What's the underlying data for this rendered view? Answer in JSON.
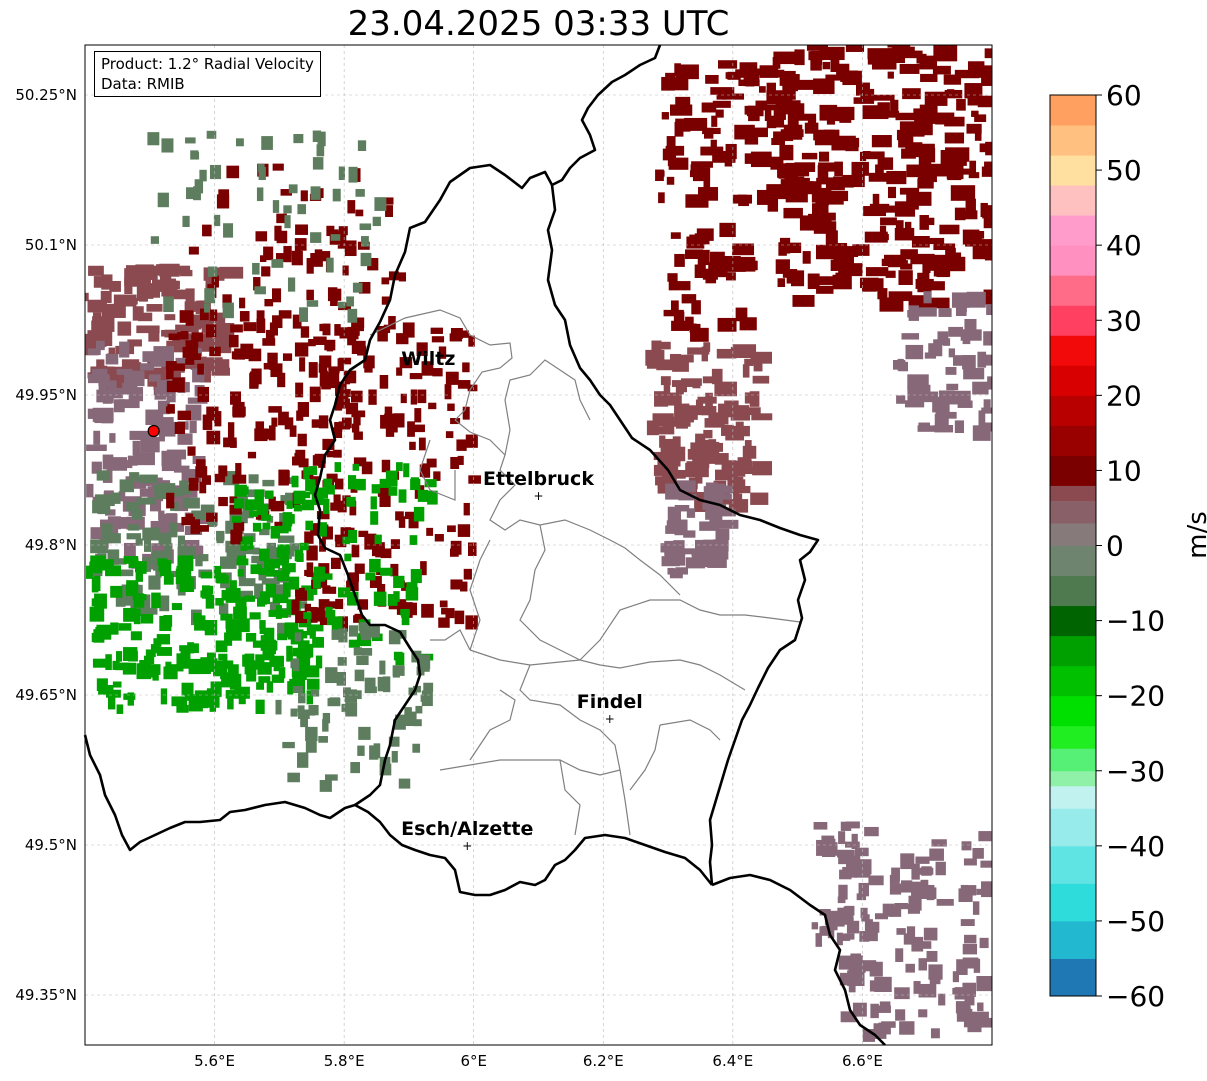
{
  "title": "23.04.2025 03:33 UTC",
  "info": {
    "product": "Product: 1.2° Radial Velocity",
    "data": "Data: RMIB"
  },
  "axes": {
    "lon_range": [
      5.4,
      6.8
    ],
    "lat_range": [
      49.3,
      50.3
    ],
    "x_ticks": [
      {
        "value": 5.6,
        "label": "5.6°E"
      },
      {
        "value": 5.8,
        "label": "5.8°E"
      },
      {
        "value": 6.0,
        "label": "6°E"
      },
      {
        "value": 6.2,
        "label": "6.2°E"
      },
      {
        "value": 6.4,
        "label": "6.4°E"
      },
      {
        "value": 6.6,
        "label": "6.6°E"
      }
    ],
    "y_ticks": [
      {
        "value": 50.25,
        "label": "50.25°N"
      },
      {
        "value": 50.1,
        "label": "50.1°N"
      },
      {
        "value": 49.95,
        "label": "49.95°N"
      },
      {
        "value": 49.8,
        "label": "49.8°N"
      },
      {
        "value": 49.65,
        "label": "49.65°N"
      },
      {
        "value": 49.5,
        "label": "49.5°N"
      },
      {
        "value": 49.35,
        "label": "49.35°N"
      }
    ]
  },
  "places": [
    {
      "name": "Wiltz",
      "lon": 5.93,
      "lat": 49.97,
      "marker": false
    },
    {
      "name": "Ettelbruck",
      "lon": 6.1,
      "lat": 49.85,
      "marker": true
    },
    {
      "name": "Findel",
      "lon": 6.21,
      "lat": 49.627,
      "marker": true
    },
    {
      "name": "Esch/Alzette",
      "lon": 5.99,
      "lat": 49.5,
      "marker": true
    }
  ],
  "radar_site": {
    "lon": 5.506,
    "lat": 49.914,
    "color": "#ff0000"
  },
  "colorbar": {
    "label": "m/s",
    "vmin": -60,
    "vmax": 60,
    "ticks": [
      60,
      50,
      40,
      30,
      20,
      10,
      0,
      -10,
      -20,
      -30,
      -40,
      -50,
      -60
    ],
    "tick_labels": [
      "60",
      "50",
      "40",
      "30",
      "20",
      "10",
      "0",
      "−10",
      "−20",
      "−30",
      "−40",
      "−50",
      "−60"
    ],
    "stops": [
      {
        "from": -60,
        "to": -55,
        "color": "#1f77b4"
      },
      {
        "from": -55,
        "to": -50,
        "color": "#22b8d0"
      },
      {
        "from": -50,
        "to": -45,
        "color": "#2edcdc"
      },
      {
        "from": -45,
        "to": -40,
        "color": "#5fe3e3"
      },
      {
        "from": -40,
        "to": -35,
        "color": "#97ebeb"
      },
      {
        "from": -35,
        "to": -32,
        "color": "#c2f2f0"
      },
      {
        "from": -32,
        "to": -30,
        "color": "#8ff0a8"
      },
      {
        "from": -30,
        "to": -27,
        "color": "#55f075"
      },
      {
        "from": -27,
        "to": -24,
        "color": "#20ee20"
      },
      {
        "from": -24,
        "to": -20,
        "color": "#00e000"
      },
      {
        "from": -20,
        "to": -16,
        "color": "#00c000"
      },
      {
        "from": -16,
        "to": -12,
        "color": "#00a000"
      },
      {
        "from": -12,
        "to": -8,
        "color": "#006400"
      },
      {
        "from": -8,
        "to": -4,
        "color": "#4f7a4f"
      },
      {
        "from": -4,
        "to": 0,
        "color": "#6e846e"
      },
      {
        "from": 0,
        "to": 3,
        "color": "#877a7a"
      },
      {
        "from": 3,
        "to": 6,
        "color": "#8a6068"
      },
      {
        "from": 6,
        "to": 8,
        "color": "#8a4a50"
      },
      {
        "from": 8,
        "to": 12,
        "color": "#7a0000"
      },
      {
        "from": 12,
        "to": 16,
        "color": "#990000"
      },
      {
        "from": 16,
        "to": 20,
        "color": "#b80000"
      },
      {
        "from": 20,
        "to": 24,
        "color": "#d80000"
      },
      {
        "from": 24,
        "to": 28,
        "color": "#f20a0a"
      },
      {
        "from": 28,
        "to": 32,
        "color": "#ff4060"
      },
      {
        "from": 32,
        "to": 36,
        "color": "#ff6c88"
      },
      {
        "from": 36,
        "to": 40,
        "color": "#ff90c0"
      },
      {
        "from": 40,
        "to": 44,
        "color": "#ff9ccc"
      },
      {
        "from": 44,
        "to": 48,
        "color": "#ffc0c0"
      },
      {
        "from": 48,
        "to": 52,
        "color": "#ffe0a0"
      },
      {
        "from": 52,
        "to": 56,
        "color": "#ffc080"
      },
      {
        "from": 56,
        "to": 60,
        "color": "#ffa060"
      }
    ]
  },
  "colors": {
    "border": "#000000",
    "admin": "#808080",
    "grid": "#bbbbbb",
    "echo_receding_strong": "#7a0000",
    "echo_receding_weak": "#8a4a50",
    "echo_near_zero": "#876878",
    "echo_approaching": "#00a000",
    "echo_approaching_weak": "#5e7d5e"
  }
}
